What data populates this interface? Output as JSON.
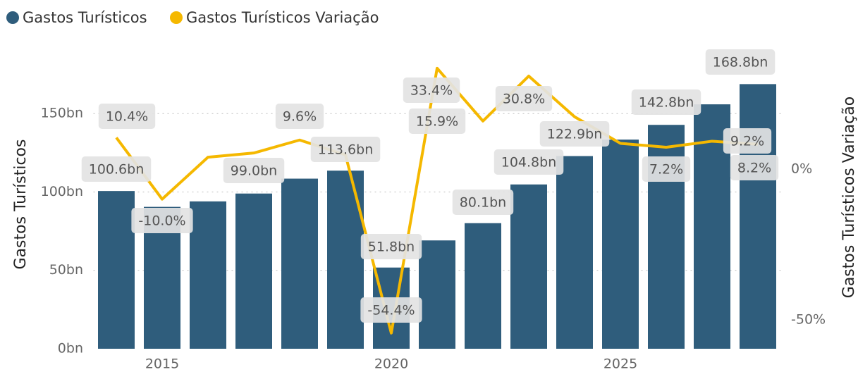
{
  "chart_data": {
    "type": "bar-line",
    "x": [
      2014,
      2015,
      2016,
      2017,
      2018,
      2019,
      2020,
      2021,
      2022,
      2023,
      2024,
      2025,
      2026,
      2027,
      2028
    ],
    "xlim": [
      2013.5,
      2028.5
    ],
    "xticks": [
      2015,
      2020,
      2025
    ],
    "ylabel": "Gastos Turísticos",
    "y2label": "Gastos Turísticos Variação",
    "ylim": [
      0,
      182
    ],
    "yticks": [
      {
        "value": 0,
        "label": "0bn"
      },
      {
        "value": 50,
        "label": "50bn"
      },
      {
        "value": 100,
        "label": "100bn"
      },
      {
        "value": 150,
        "label": "150bn"
      }
    ],
    "y2lim": [
      -59.6,
      35
    ],
    "y2ticks": [
      {
        "value": -50,
        "label": "-50%"
      },
      {
        "value": 0,
        "label": "0%"
      }
    ],
    "grid": true,
    "legend": "top-left",
    "series": [
      {
        "name": "Gastos Turísticos",
        "color": "#2f5d7c",
        "kind": "bar",
        "values": [
          100.6,
          90.5,
          94.0,
          99.0,
          108.5,
          113.6,
          51.8,
          69.1,
          80.1,
          104.8,
          122.9,
          133.4,
          142.8,
          155.9,
          168.8
        ],
        "value_labels": [
          "100.6bn",
          null,
          null,
          "99.0bn",
          null,
          "113.6bn",
          "51.8bn",
          null,
          "80.1bn",
          "104.8bn",
          "122.9bn",
          null,
          "142.8bn",
          null,
          "168.8bn"
        ]
      },
      {
        "name": "Gastos Turísticos Variação",
        "color": "#f5b800",
        "kind": "line",
        "axis": "y2",
        "values": [
          10.4,
          -10.0,
          3.9,
          5.3,
          9.6,
          4.7,
          -54.4,
          33.4,
          15.9,
          30.8,
          17.3,
          8.5,
          7.2,
          9.2,
          8.2
        ],
        "value_labels": [
          "10.4%",
          "-10.0%",
          null,
          null,
          "9.6%",
          null,
          "-54.4%",
          "33.4%",
          "15.9%",
          "30.8%",
          null,
          null,
          "7.2%",
          "9.2%",
          "8.2%"
        ]
      }
    ]
  }
}
